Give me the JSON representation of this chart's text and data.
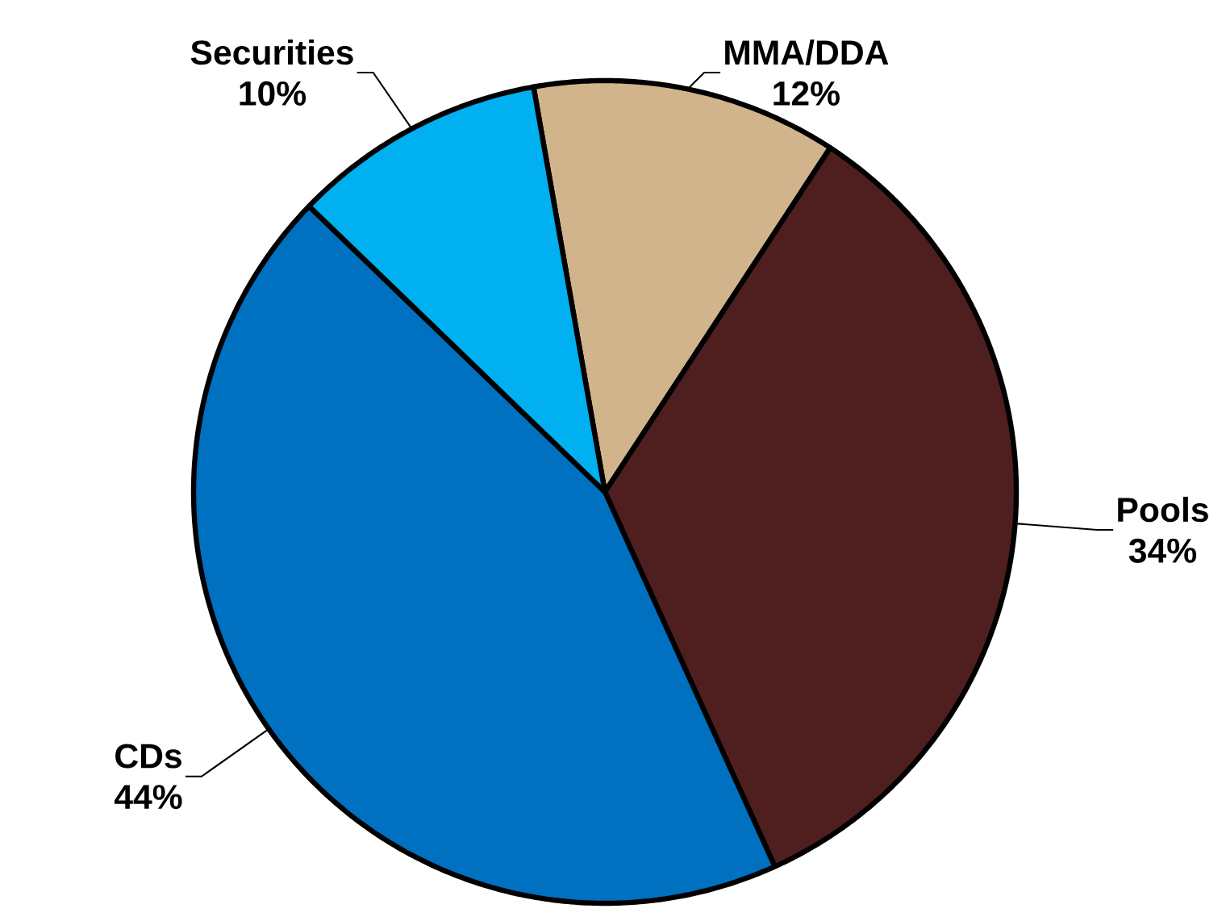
{
  "chart_data": {
    "type": "pie",
    "categories": [
      "MMA/DDA",
      "Pools",
      "CDs",
      "Securities"
    ],
    "values": [
      12,
      34,
      44,
      10
    ],
    "colors": [
      "#d2b48c",
      "#4f1f20",
      "#0070c0",
      "#00b0f0"
    ],
    "value_labels": [
      "12%",
      "34%",
      "44%",
      "10%"
    ]
  }
}
